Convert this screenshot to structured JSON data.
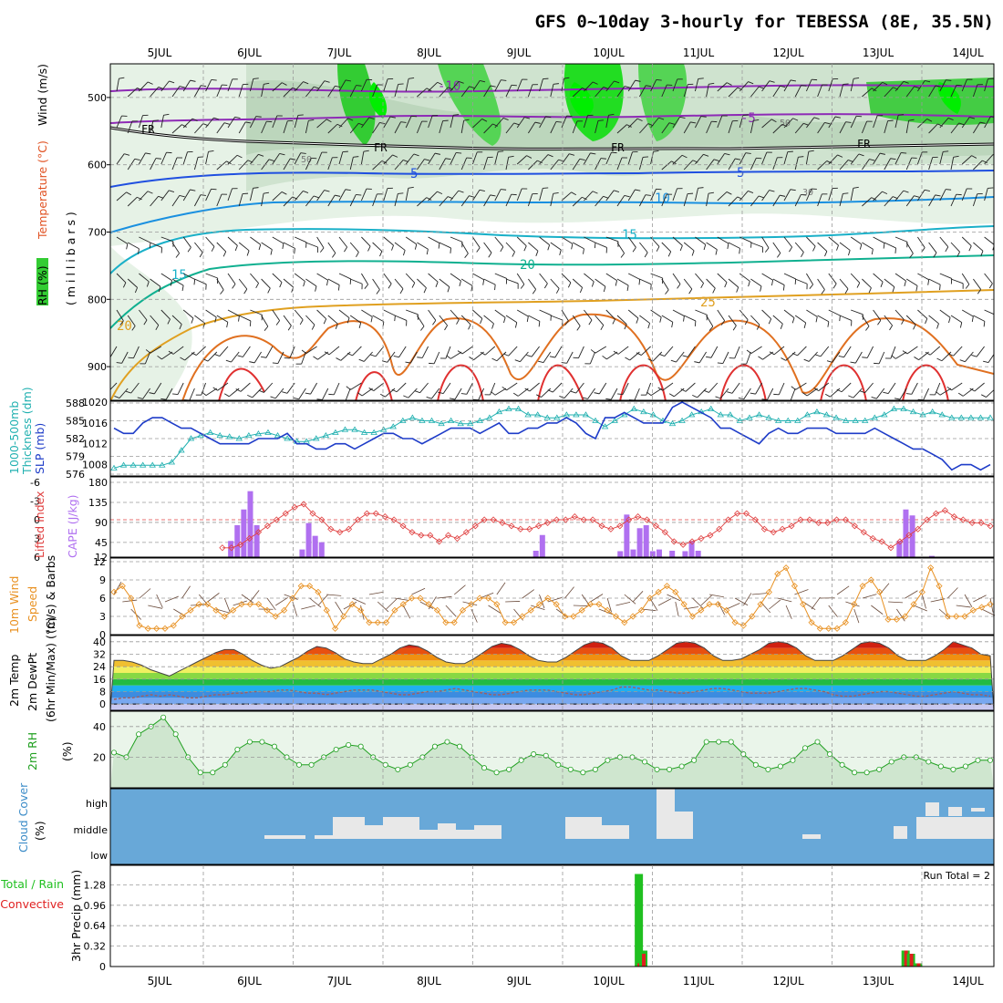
{
  "title": "GFS 0~10day 3-hourly for TEBESSA (8E, 35.5N)",
  "days": [
    "5JUL",
    "6JUL",
    "7JUL",
    "8JUL",
    "9JUL",
    "10JUL",
    "11JUL",
    "12JUL",
    "13JUL",
    "14JUL"
  ],
  "panel_labels": {
    "upper": {
      "rh": "RH (%)",
      "temp": "Temperature (°C)",
      "wind": "Wind (m/s)",
      "units": "( m i l l i b a r s )"
    },
    "pressure": {
      "thk1": "1000-500mb",
      "thk2": "Thickness (dm)",
      "slp": "SLP (mb)"
    },
    "cape": {
      "li": "Lifted Index",
      "cape": "CAPE (J/kg)"
    },
    "wind10": {
      "l1": "10m Wind",
      "l2": "Speed",
      "l3": "(m/s) & Barbs"
    },
    "temp2m": {
      "l1": "2m Temp",
      "l2": "2m DewPt",
      "l3": "(6hr Min/Max) (°C)"
    },
    "rh2m": {
      "l1": "2m RH",
      "l2": "(%)"
    },
    "cloud": {
      "l1": "Cloud Cover",
      "l2": "(%)",
      "high": "high",
      "middle": "middle",
      "low": "low"
    },
    "precip": {
      "l1": "Total / Rain",
      "l2": "Convective",
      "l3": "3hr Precip (mm)",
      "run_total": "Run Total = 2"
    }
  },
  "colors": {
    "slp": "#1e3cc8",
    "thickness": "#20b0b0",
    "li": "#e04040",
    "cape": "#b070f0",
    "wind_speed": "#e89020",
    "rh_line": "#20a020",
    "cloud_bg": "#68a8d8",
    "cloud_fill": "#e8e8e8",
    "precip_total": "#20c020",
    "precip_conv": "#e02020"
  },
  "chart_data": [
    {
      "type": "contour",
      "name": "upper-air",
      "y_ticks": [
        500,
        600,
        700,
        800,
        900
      ],
      "contour_labels": [
        "-10",
        "-5",
        "FR",
        "5",
        "10",
        "15",
        "20",
        "25",
        "50",
        "30"
      ]
    },
    {
      "type": "line",
      "name": "slp-thickness",
      "left_axis_ticks": [
        576,
        579,
        582,
        585,
        588
      ],
      "right_axis_ticks": [
        1008,
        1012,
        1016,
        1020
      ],
      "slp": [
        1015,
        1014,
        1014,
        1016,
        1017,
        1017,
        1016,
        1015,
        1015,
        1014,
        1013,
        1012,
        1012,
        1012,
        1012,
        1013,
        1013,
        1013,
        1014,
        1012,
        1012,
        1011,
        1011,
        1012,
        1012,
        1011,
        1012,
        1013,
        1014,
        1014,
        1013,
        1013,
        1012,
        1013,
        1014,
        1015,
        1015,
        1015,
        1014,
        1015,
        1016,
        1014,
        1014,
        1015,
        1015,
        1016,
        1016,
        1017,
        1016,
        1014,
        1013,
        1017,
        1017,
        1018,
        1017,
        1016,
        1016,
        1016,
        1019,
        1020,
        1019,
        1018,
        1017,
        1015,
        1015,
        1014,
        1013,
        1012,
        1014,
        1015,
        1014,
        1014,
        1015,
        1015,
        1015,
        1014,
        1014,
        1014,
        1014,
        1015,
        1014,
        1013,
        1012,
        1011,
        1011,
        1010,
        1009,
        1007,
        1008,
        1008,
        1007,
        1008
      ],
      "thickness": [
        577,
        577.5,
        577.5,
        577.5,
        577.5,
        577.5,
        578,
        580,
        582,
        582.5,
        583,
        582.5,
        582.3,
        582,
        582.5,
        582.8,
        583,
        582.5,
        582,
        581.5,
        581.5,
        582,
        582.5,
        583,
        583.5,
        583.5,
        583,
        583,
        583.5,
        584,
        585,
        585.5,
        585,
        585,
        584.5,
        585,
        584.5,
        584.5,
        585,
        585.5,
        586.5,
        587,
        587,
        586,
        586,
        585.5,
        585.5,
        586,
        586,
        586,
        585,
        584,
        585,
        586,
        587,
        586.5,
        586,
        585,
        584.5,
        585,
        586,
        586.5,
        587,
        586,
        586,
        585,
        585.5,
        586,
        585.5,
        585,
        585,
        585,
        586,
        586.5,
        586,
        585.5,
        585,
        585,
        585,
        585.5,
        586,
        587,
        587,
        586.5,
        586,
        586.5,
        586,
        585.5,
        585.5,
        585.5,
        585.5,
        585.5
      ]
    },
    {
      "type": "bar",
      "name": "cape-lifted-index",
      "cape_ticks": [
        12,
        45,
        90,
        135,
        180
      ],
      "li_ticks": [
        6,
        3,
        0,
        -3,
        -6
      ],
      "cape": [
        0,
        0,
        0,
        0,
        0,
        0,
        0,
        0,
        0,
        0,
        0,
        0,
        0,
        0,
        0,
        0,
        0,
        0,
        38,
        75,
        112,
        155,
        75,
        0,
        0,
        0,
        0,
        0,
        0,
        18,
        80,
        50,
        35,
        0,
        0,
        0,
        0,
        0,
        0,
        0,
        0,
        0,
        0,
        0,
        0,
        0,
        0,
        0,
        0,
        0,
        0,
        0,
        0,
        0,
        0,
        0,
        0,
        0,
        0,
        0,
        0,
        0,
        0,
        0,
        0,
        15,
        52,
        0,
        0,
        0,
        0,
        0,
        0,
        0,
        0,
        0,
        0,
        0,
        14,
        100,
        18,
        68,
        75,
        14,
        18,
        0,
        15,
        0,
        14,
        38,
        15,
        0,
        0,
        0,
        0,
        0,
        0,
        0,
        0,
        0,
        0,
        0,
        0,
        0,
        0,
        0,
        0,
        0,
        0,
        0,
        0,
        0,
        0,
        0,
        0,
        0,
        0,
        0,
        0,
        0,
        0,
        38,
        112,
        98,
        0,
        0,
        3,
        0,
        0,
        0,
        0,
        0,
        0,
        0,
        0,
        0
      ],
      "lifted_index": [
        null,
        null,
        null,
        null,
        null,
        null,
        null,
        null,
        null,
        null,
        null,
        null,
        4.5,
        4.5,
        4,
        3,
        2,
        1,
        0,
        -1,
        -2,
        -2.5,
        -1,
        0,
        1.5,
        2,
        1.5,
        0,
        -1,
        -1,
        -0.5,
        0,
        1,
        2,
        2.5,
        2.5,
        3.5,
        2.5,
        3,
        2,
        1,
        0,
        0,
        0.5,
        1,
        1.5,
        1.5,
        1,
        0.5,
        0,
        0,
        -0.5,
        0,
        0,
        1,
        1.5,
        1,
        0,
        -0.5,
        0,
        1,
        2,
        3.5,
        4,
        3.5,
        3,
        2.5,
        1.5,
        0,
        -1,
        -1,
        0,
        1.5,
        2,
        1.5,
        1,
        0,
        0,
        0.5,
        0.5,
        0,
        0,
        1,
        2,
        3,
        3.5,
        4.5,
        3.5,
        2.5,
        1.5,
        0,
        -1,
        -1.5,
        -0.5,
        0,
        0.5,
        0.5,
        1
      ]
    },
    {
      "type": "line",
      "name": "wind10m",
      "y_ticks": [
        0,
        3,
        6,
        9,
        12
      ],
      "speed": [
        7,
        8,
        6,
        1.5,
        1,
        1,
        1,
        1.5,
        3,
        4,
        5,
        5,
        4,
        3,
        4,
        5,
        5,
        5,
        4,
        3,
        4,
        6,
        8,
        8,
        7,
        4,
        1,
        3,
        5,
        4,
        2,
        2,
        2,
        4,
        5,
        6,
        6,
        5,
        4,
        2,
        2,
        4,
        5,
        6,
        6,
        5,
        2,
        2,
        3,
        4,
        5,
        6,
        5,
        3,
        3,
        4,
        5,
        5,
        4,
        3,
        2,
        3,
        4,
        6,
        7,
        8,
        7,
        5,
        3,
        4,
        5,
        5,
        4,
        2,
        1.5,
        3,
        5,
        7,
        10,
        11,
        8,
        5,
        2,
        1,
        1,
        1,
        2,
        5,
        8,
        9,
        7,
        2.5,
        2.5,
        3,
        5,
        7,
        11,
        8,
        3,
        3,
        3,
        4,
        4.5,
        5
      ]
    },
    {
      "type": "area",
      "name": "temp2m",
      "y_ticks": [
        0,
        8,
        16,
        24,
        32,
        40
      ],
      "temp": [
        28,
        28,
        27,
        25,
        22,
        20,
        18,
        21,
        24,
        27,
        30,
        33,
        35,
        35,
        32,
        28,
        25,
        23,
        24,
        27,
        30,
        34,
        37,
        36,
        33,
        29,
        27,
        26,
        26,
        29,
        32,
        36,
        38,
        37,
        34,
        30,
        27,
        26,
        26,
        29,
        33,
        37,
        39,
        38,
        35,
        31,
        28,
        27,
        27,
        30,
        34,
        38,
        40,
        39,
        36,
        31,
        28,
        28,
        28,
        31,
        35,
        39,
        40,
        39,
        36,
        31,
        28,
        28,
        29,
        32,
        35,
        39,
        40,
        39,
        36,
        31,
        28,
        28,
        28,
        31,
        35,
        39,
        40,
        39,
        36,
        31,
        28,
        28,
        28,
        31,
        35,
        40,
        38,
        36,
        32,
        31
      ],
      "dewpoint": [
        3,
        4,
        4,
        5,
        6,
        5,
        6,
        5,
        4,
        4,
        5,
        6,
        6,
        7,
        7,
        8,
        8,
        8,
        9,
        9,
        8,
        7,
        7,
        6,
        7,
        8,
        9,
        9,
        9,
        8,
        7,
        6,
        6,
        7,
        8,
        8,
        9,
        10,
        9,
        8,
        7,
        6,
        6,
        7,
        8,
        9,
        9,
        9,
        8,
        7,
        6,
        6,
        7,
        8,
        9,
        11,
        11,
        10,
        9,
        9,
        8,
        7,
        7,
        8,
        9,
        10,
        10,
        9,
        8,
        7,
        7,
        7,
        8,
        9,
        10,
        10,
        9,
        8,
        6,
        5,
        5,
        6,
        7,
        8,
        8,
        7,
        6,
        5,
        5,
        6,
        7,
        8,
        7,
        6,
        6,
        5
      ]
    },
    {
      "type": "area",
      "name": "rh2m",
      "y_ticks": [
        20,
        40
      ],
      "rh": [
        23,
        20,
        35,
        40,
        46,
        35,
        20,
        10,
        10,
        15,
        25,
        30,
        30,
        27,
        20,
        15,
        15,
        20,
        25,
        28,
        27,
        20,
        15,
        12,
        15,
        20,
        27,
        30,
        27,
        20,
        13,
        10,
        12,
        18,
        22,
        21,
        15,
        12,
        10,
        12,
        18,
        20,
        20,
        17,
        12,
        12,
        14,
        18,
        30,
        30,
        30,
        22,
        15,
        12,
        14,
        18,
        26,
        30,
        22,
        15,
        10,
        10,
        12,
        17,
        20,
        20,
        17,
        14,
        12,
        14,
        18,
        18
      ]
    },
    {
      "type": "bar",
      "name": "cloud-cover",
      "levels": [
        "high",
        "middle",
        "low"
      ]
    },
    {
      "type": "bar",
      "name": "precip3hr",
      "y_ticks": [
        0,
        0.32,
        0.64,
        0.96,
        1.28
      ],
      "events": [
        {
          "day_index": 5.75,
          "total": 1.45,
          "conv": 0.05
        },
        {
          "day_index": 5.8,
          "total": 0.25,
          "conv": 0.2
        },
        {
          "day_index": 8.72,
          "total": 0.25,
          "conv": 0.25
        },
        {
          "day_index": 8.78,
          "total": 0.2,
          "conv": 0.2
        },
        {
          "day_index": 8.86,
          "total": 0.05,
          "conv": 0.05
        }
      ]
    }
  ]
}
